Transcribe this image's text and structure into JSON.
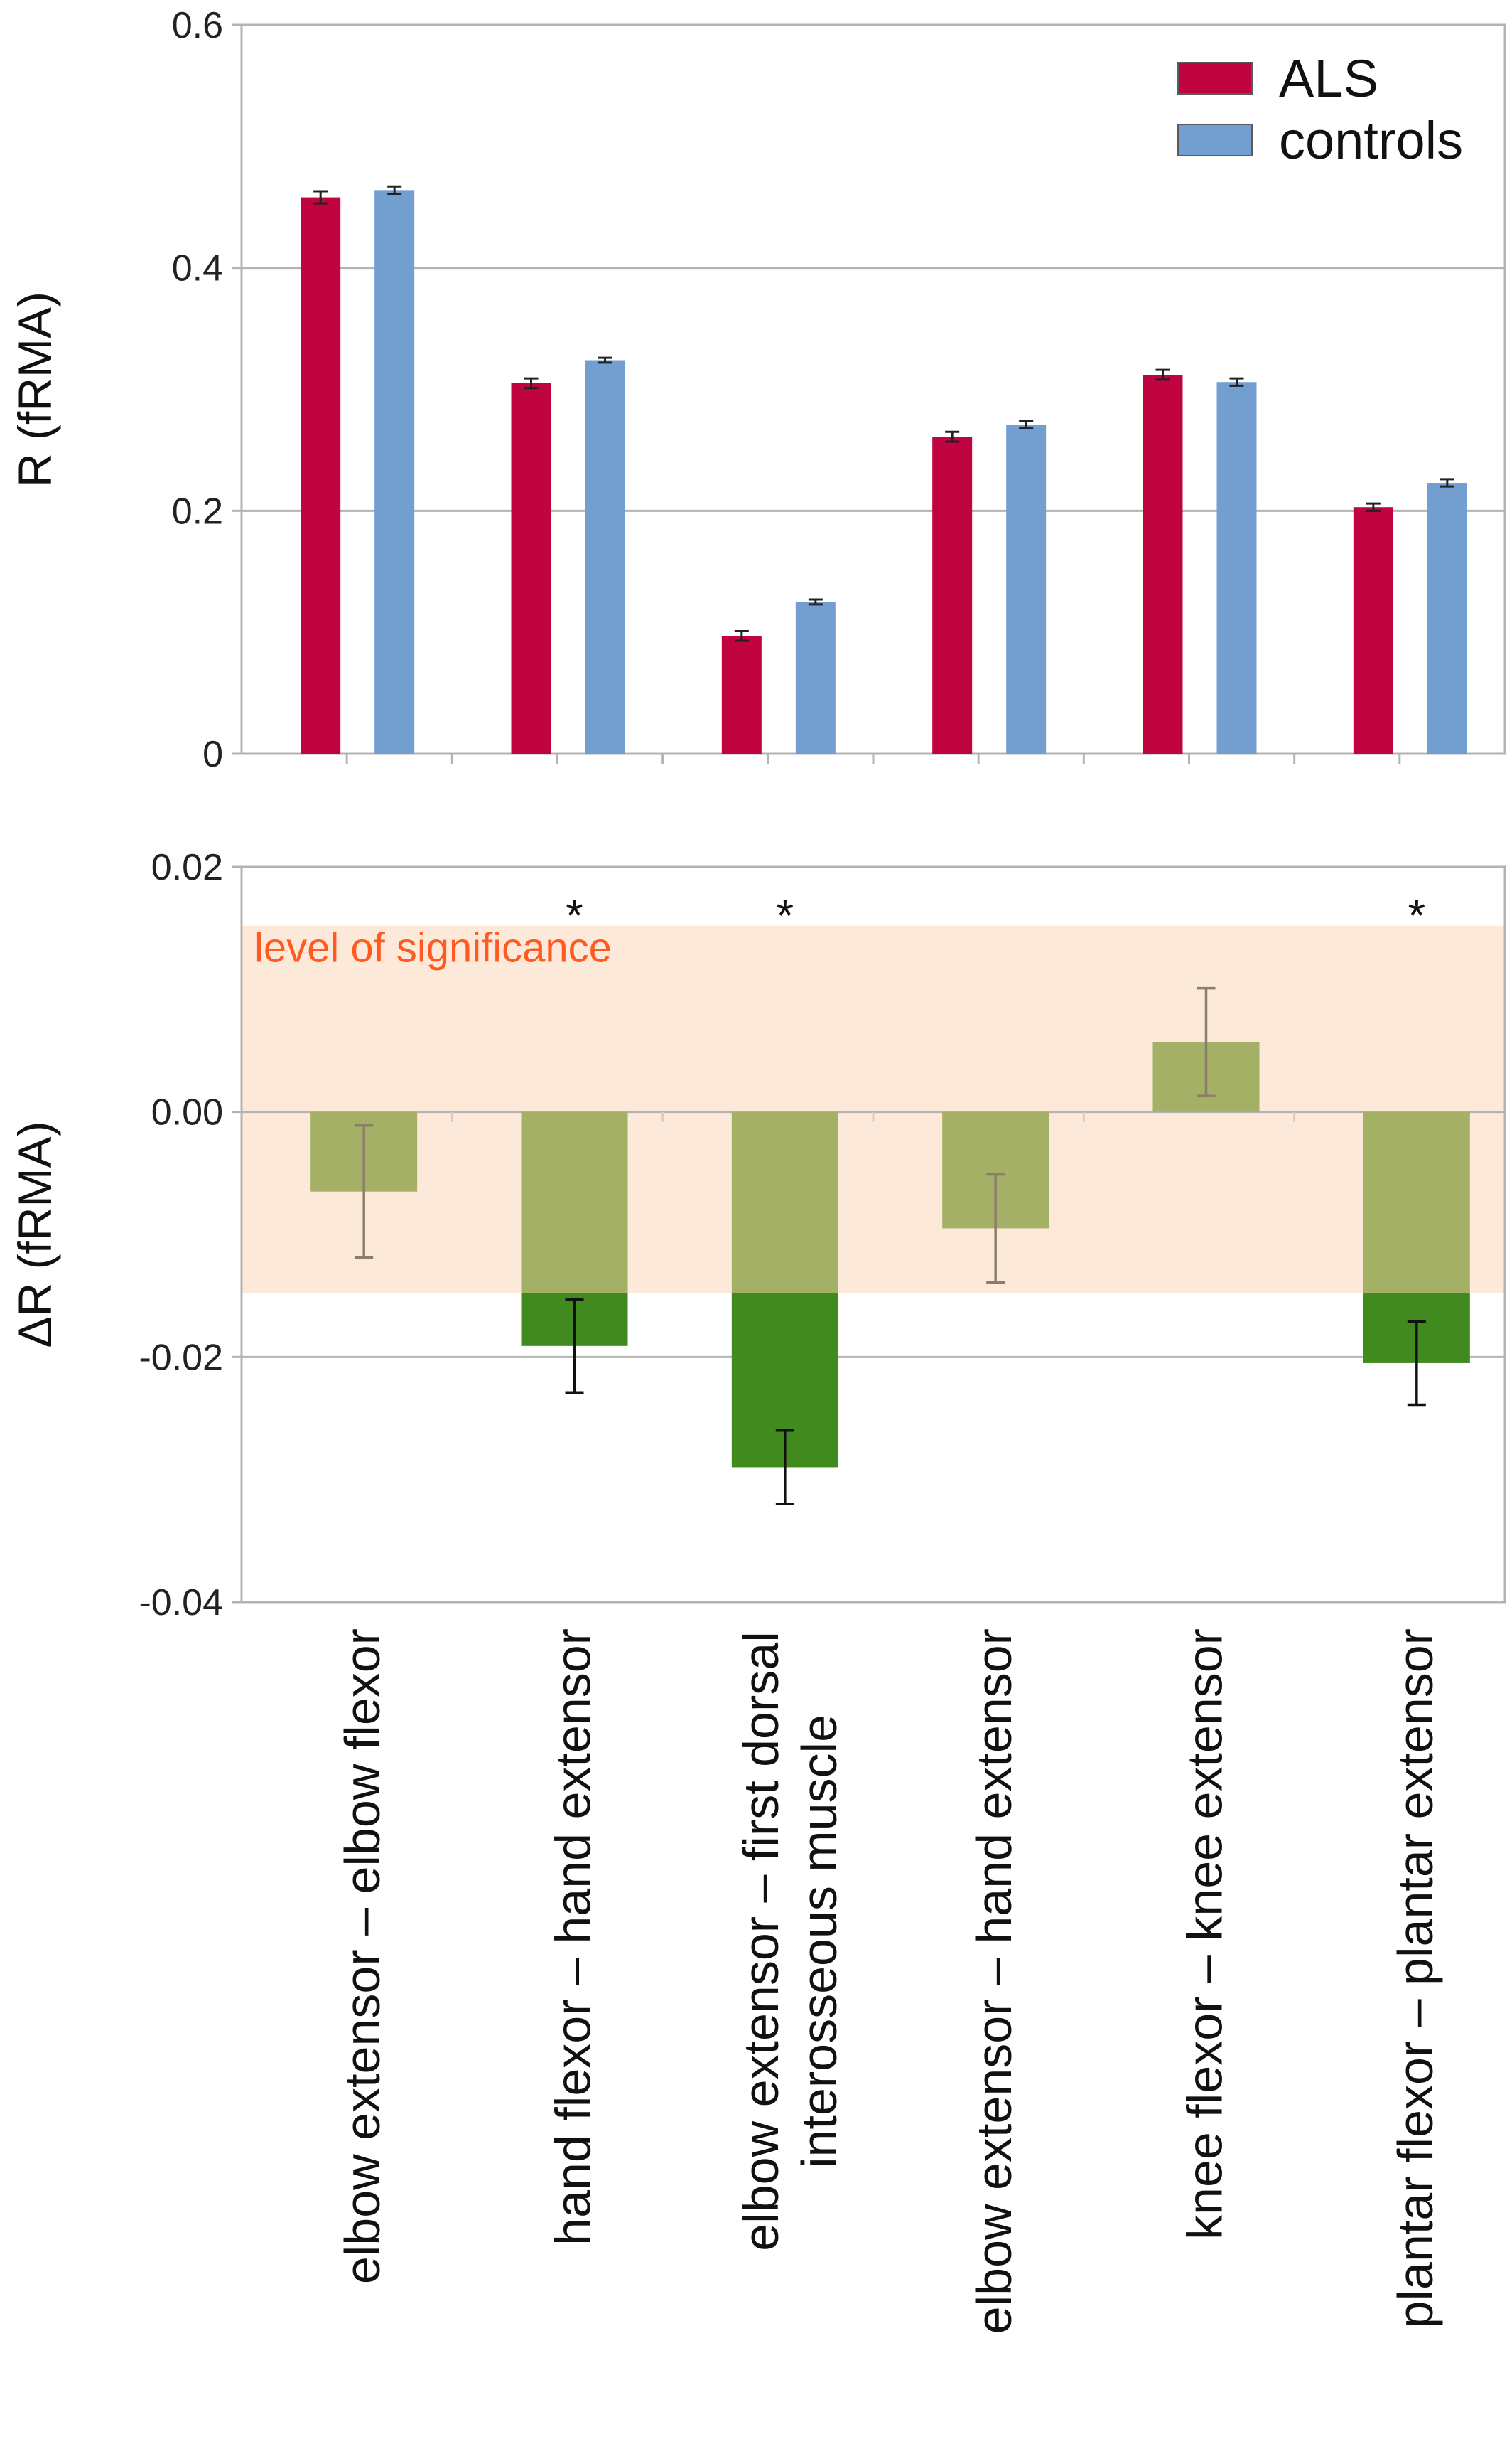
{
  "chart_data": [
    {
      "type": "bar",
      "categories": [
        "elbow extensor – elbow flexor",
        "hand flexor – hand extensor",
        "elbow extensor – first dorsal interosseous muscle",
        "elbow extensor – hand extensor",
        "knee flexor – knee extensor",
        "plantar flexor – plantar extensor"
      ],
      "series": [
        {
          "name": "ALS",
          "color": "#c0043f",
          "values": [
            0.458,
            0.305,
            0.097,
            0.261,
            0.312,
            0.203
          ],
          "errors": [
            0.005,
            0.004,
            0.004,
            0.004,
            0.004,
            0.003
          ]
        },
        {
          "name": "controls",
          "color": "#729fcf",
          "values": [
            0.464,
            0.324,
            0.125,
            0.271,
            0.306,
            0.223
          ],
          "errors": [
            0.003,
            0.002,
            0.002,
            0.003,
            0.003,
            0.003
          ]
        }
      ],
      "ylabel": "R (fRMA)",
      "ylim": [
        0,
        0.6
      ],
      "yticks": [
        "0",
        "0.2",
        "0.4",
        "0.6"
      ],
      "ytick_values": [
        0,
        0.2,
        0.4,
        0.6
      ],
      "grid": true,
      "legend": "top-right"
    },
    {
      "type": "bar",
      "categories": [
        "elbow extensor – elbow flexor",
        "hand flexor – hand extensor",
        "elbow extensor – first dorsal interosseous muscle",
        "elbow extensor – hand extensor",
        "knee flexor – knee extensor",
        "plantar flexor – plantar extensor"
      ],
      "values": [
        -0.0065,
        -0.0191,
        -0.029,
        -0.0095,
        0.0057,
        -0.0205
      ],
      "errors": [
        0.0054,
        0.0038,
        0.003,
        0.0044,
        0.0044,
        0.0034
      ],
      "significant": [
        false,
        true,
        true,
        false,
        false,
        true
      ],
      "significance_marker": "*",
      "significance_band": {
        "label": "level of significance",
        "range": [
          -0.0148,
          0.0152
        ],
        "color": "#fde9d9",
        "label_color": "#ff5a1f"
      },
      "bar_color_within_band": "#a3b065",
      "bar_color_beyond_band": "#418a1d",
      "ylabel": "ΔR (fRMA)",
      "ylim": [
        -0.04,
        0.02
      ],
      "yticks": [
        "-0.04",
        "-0.02",
        "0.00",
        "0.02"
      ],
      "ytick_values": [
        -0.04,
        -0.02,
        0,
        0.02
      ],
      "grid": true
    }
  ]
}
